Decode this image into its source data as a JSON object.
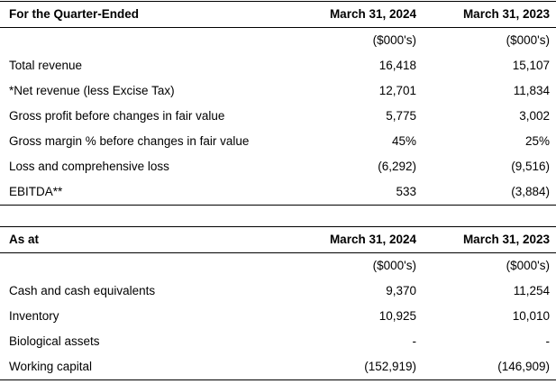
{
  "tables": [
    {
      "title": "For the Quarter-Ended",
      "columns": [
        "March 31, 2024",
        "March 31, 2023"
      ],
      "units": [
        "($000's)",
        "($000's)"
      ],
      "rows": [
        {
          "label": "Total revenue",
          "v1": "16,418",
          "v2": "15,107"
        },
        {
          "label": "*Net revenue (less Excise Tax)",
          "v1": "12,701",
          "v2": "11,834"
        },
        {
          "label": "Gross profit before changes in fair value",
          "v1": "5,775",
          "v2": "3,002"
        },
        {
          "label": "Gross margin % before changes in fair value",
          "v1": "45%",
          "v2": "25%"
        },
        {
          "label": "Loss and comprehensive loss",
          "v1": "(6,292)",
          "v2": "(9,516)"
        },
        {
          "label": "EBITDA**",
          "v1": "533",
          "v2": "(3,884)"
        }
      ]
    },
    {
      "title": "As at",
      "columns": [
        "March 31, 2024",
        "March 31, 2023"
      ],
      "units": [
        "($000's)",
        "($000's)"
      ],
      "rows": [
        {
          "label": "Cash and cash equivalents",
          "v1": "9,370",
          "v2": "11,254"
        },
        {
          "label": "Inventory",
          "v1": "10,925",
          "v2": "10,010"
        },
        {
          "label": "Biological assets",
          "v1": "-",
          "v2": "-"
        },
        {
          "label": "Working capital",
          "v1": "(152,919)",
          "v2": "(146,909)"
        }
      ]
    }
  ]
}
